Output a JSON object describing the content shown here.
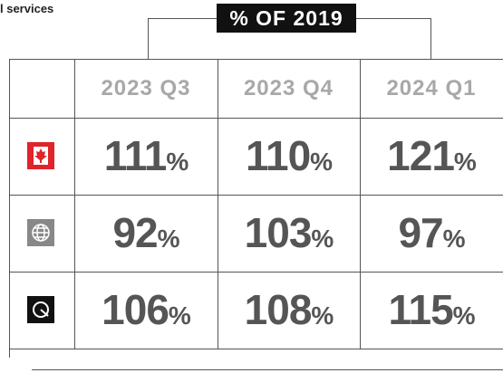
{
  "header": {
    "subtitle": "l services",
    "title": "% OF 2019"
  },
  "table": {
    "columns": [
      "2023 Q3",
      "2023 Q4",
      "2024 Q1"
    ],
    "rows": [
      [
        {
          "value": "111",
          "unit": "%"
        },
        {
          "value": "110",
          "unit": "%"
        },
        {
          "value": "121",
          "unit": "%"
        }
      ],
      [
        {
          "value": "92",
          "unit": "%"
        },
        {
          "value": "103",
          "unit": "%"
        },
        {
          "value": "97",
          "unit": "%"
        }
      ],
      [
        {
          "value": "106",
          "unit": "%"
        },
        {
          "value": "108",
          "unit": "%"
        },
        {
          "value": "115",
          "unit": "%"
        }
      ]
    ]
  }
}
